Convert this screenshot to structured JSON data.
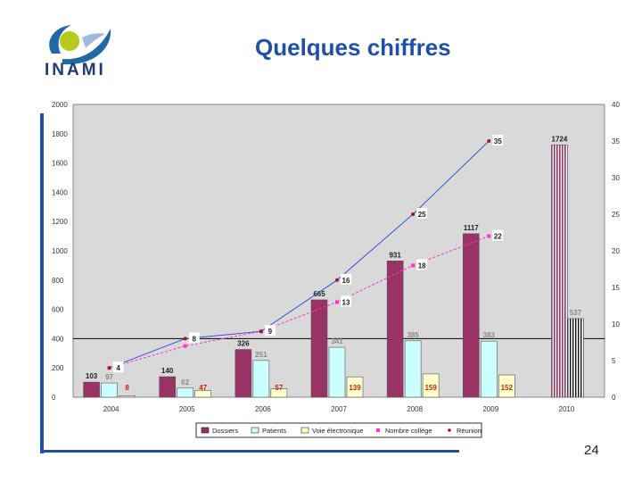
{
  "header": {
    "logo_text": "INAMI",
    "title": "Quelques chiffres"
  },
  "footer": {
    "page_number": "24"
  },
  "chart_data": {
    "type": "bar",
    "categories": [
      "2004",
      "2005",
      "2006",
      "2007",
      "2008",
      "2009",
      "2010"
    ],
    "y_left": {
      "ticks": [
        "0",
        "200",
        "400",
        "600",
        "800",
        "1000",
        "1200",
        "1400",
        "1600",
        "1800",
        "2000"
      ],
      "ylim": [
        0,
        2000
      ]
    },
    "y_right": {
      "ticks": [
        "0",
        "5",
        "10",
        "15",
        "20",
        "25",
        "30",
        "35",
        "40"
      ],
      "ylim": [
        0,
        40
      ]
    },
    "series": [
      {
        "name": "Dossiers",
        "kind": "bar",
        "axis": "left",
        "color": "#993366",
        "values": [
          103,
          140,
          326,
          665,
          931,
          1117,
          1724
        ],
        "labels": [
          "103",
          "140",
          "326",
          "665",
          "931",
          "1117",
          "1724"
        ]
      },
      {
        "name": "Patients",
        "kind": "bar",
        "axis": "left",
        "color": "#ccffff",
        "values": [
          97,
          62,
          251,
          341,
          385,
          383,
          537
        ],
        "labels": [
          "97",
          "62",
          "251",
          "341",
          "385",
          "383",
          "537"
        ]
      },
      {
        "name": "Voie électronique",
        "kind": "bar",
        "axis": "left",
        "color": "#ffffcc",
        "values": [
          8,
          47,
          57,
          139,
          159,
          152,
          null
        ],
        "labels": [
          "8",
          "47",
          "57",
          "139",
          "159",
          "152",
          ""
        ]
      },
      {
        "name": "Nombre collège",
        "kind": "line",
        "axis": "right",
        "color": "#ff33cc",
        "values": [
          4,
          7,
          9,
          13,
          18,
          22,
          null
        ],
        "labels": [
          "",
          "",
          "",
          "13",
          "18",
          "22",
          ""
        ]
      },
      {
        "name": "Réunion",
        "kind": "line",
        "axis": "right",
        "color": "#3355dd",
        "values": [
          4,
          8,
          9,
          16,
          25,
          35,
          null
        ],
        "labels": [
          "4",
          "8",
          "9",
          "16",
          "25",
          "35",
          ""
        ]
      }
    ],
    "legend": {
      "placement": "bottom",
      "items": [
        "Dossiers",
        "Patients",
        "Voie électronique",
        "Nombre collège",
        "Réunion"
      ]
    },
    "reference_line_value": 400,
    "grid": false
  }
}
